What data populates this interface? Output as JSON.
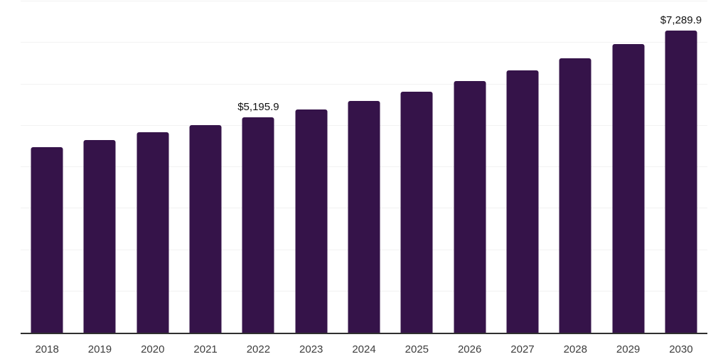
{
  "chart_data": {
    "type": "bar",
    "title": "",
    "xlabel": "",
    "ylabel": "",
    "categories": [
      "2018",
      "2019",
      "2020",
      "2021",
      "2022",
      "2023",
      "2024",
      "2025",
      "2026",
      "2027",
      "2028",
      "2029",
      "2030"
    ],
    "values": [
      4485,
      4656,
      4833,
      5009,
      5195.9,
      5383,
      5605,
      5821,
      6076,
      6332,
      6632,
      6963,
      7289.9
    ],
    "value_labels": [
      null,
      null,
      null,
      null,
      "$5,195.9",
      null,
      null,
      null,
      null,
      null,
      null,
      null,
      "$7,289.9"
    ],
    "ylim": [
      0,
      8000
    ],
    "gridline_step": 1000,
    "grid": "horizontal-only",
    "legend": "none",
    "y_axis_labels_visible": false,
    "colors": {
      "bar": "#351349",
      "gridline": "#f2f2f2",
      "axis_line": "#2f2f2f",
      "tick_label": "#3d3d3d",
      "data_label": "#111111",
      "background": "#ffffff"
    }
  }
}
